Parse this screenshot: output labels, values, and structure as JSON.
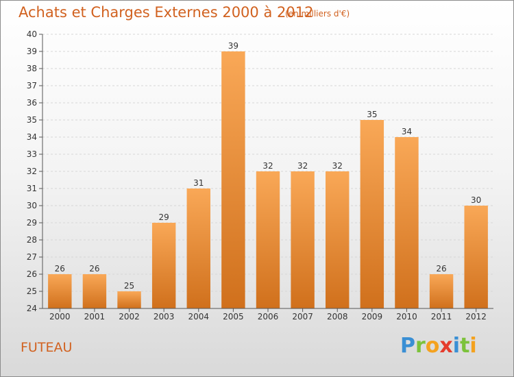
{
  "title": "Achats et Charges Externes 2000 à 2012",
  "subtitle": "(en milliers d'€)",
  "place": "FUTEAU",
  "logo": {
    "p": "P",
    "r": "r",
    "o": "o",
    "x": "x",
    "i1": "i",
    "t": "t",
    "i2": "i"
  },
  "colors": {
    "bar_top": "#f9a857",
    "bar_bottom": "#d0701c",
    "text_accent": "#d1611f"
  },
  "chart_data": {
    "type": "bar",
    "categories": [
      "2000",
      "2001",
      "2002",
      "2003",
      "2004",
      "2005",
      "2006",
      "2007",
      "2008",
      "2009",
      "2010",
      "2011",
      "2012"
    ],
    "values": [
      26,
      26,
      25,
      29,
      31,
      39,
      32,
      32,
      32,
      35,
      34,
      26,
      30
    ],
    "title": "Achats et Charges Externes 2000 à 2012",
    "subtitle": "(en milliers d'€)",
    "xlabel": "",
    "ylabel": "",
    "ylim": [
      24,
      40
    ],
    "yticks": [
      24,
      25,
      26,
      27,
      28,
      29,
      30,
      31,
      32,
      33,
      34,
      35,
      36,
      37,
      38,
      39,
      40
    ],
    "grid": true,
    "legend": "none",
    "data_labels": true
  }
}
